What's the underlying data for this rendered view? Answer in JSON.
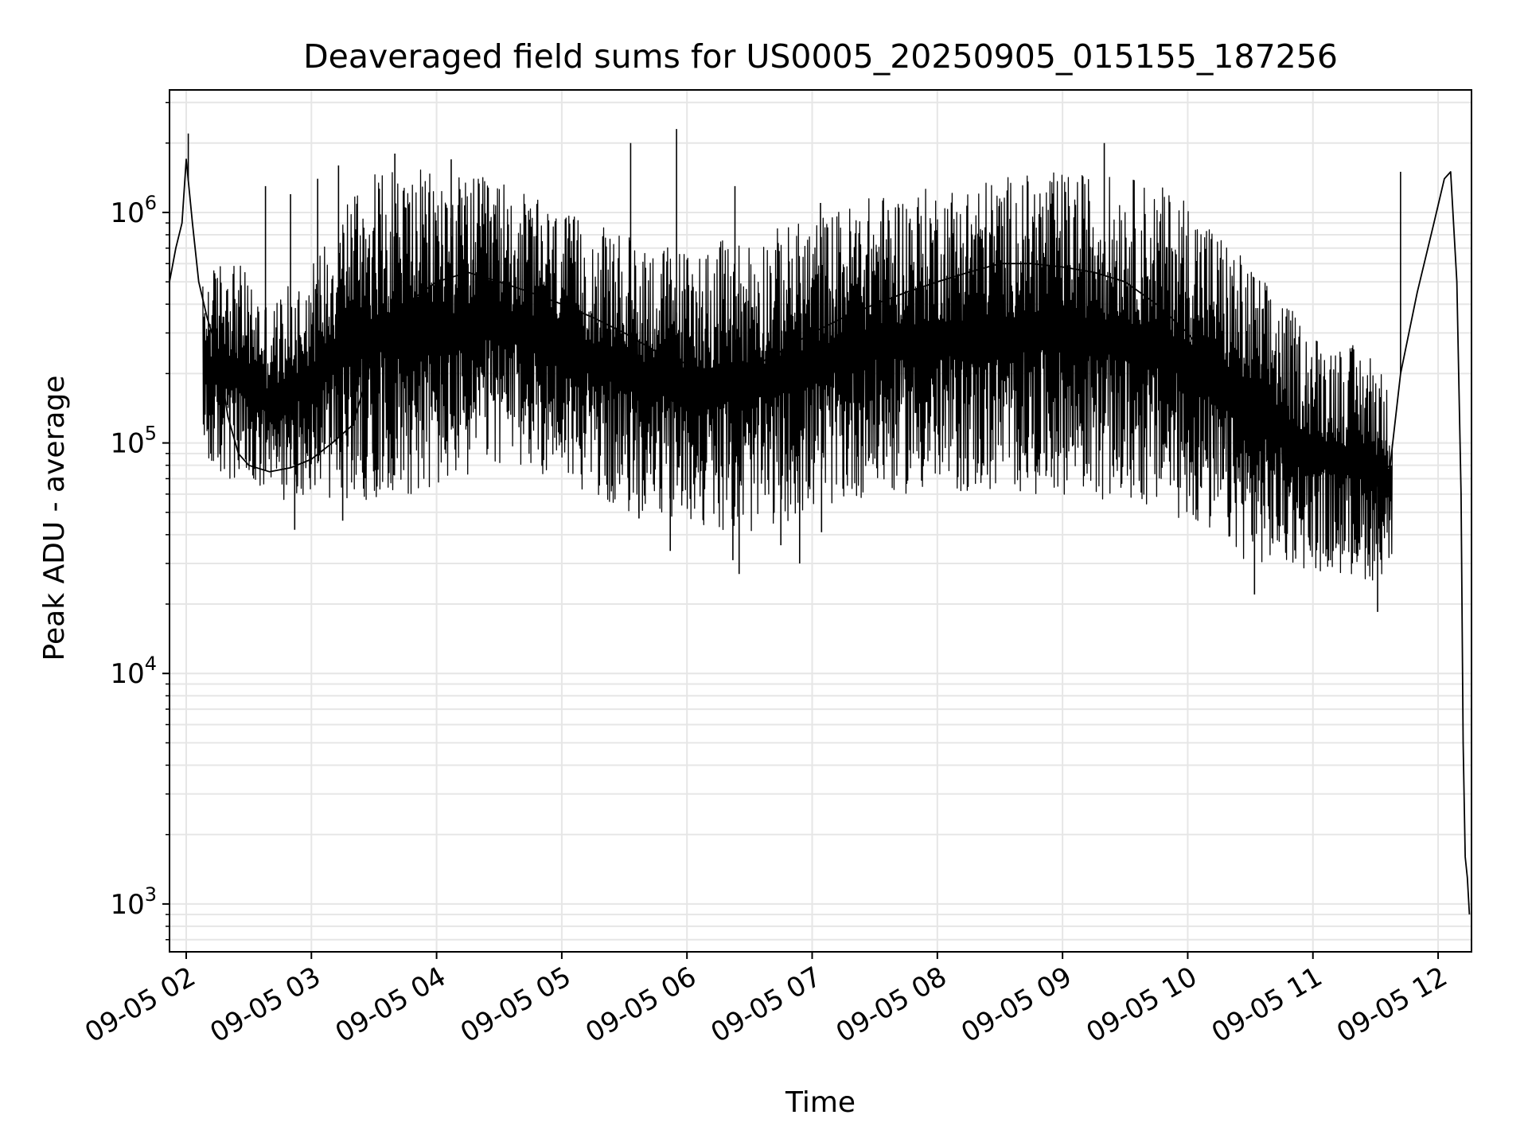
{
  "chart_data": {
    "type": "line",
    "title": "Deaveraged field sums for US0005_20250905_015155_187256",
    "xlabel": "Time",
    "ylabel": "Peak ADU - average",
    "y_scale": "log",
    "ylim": [
      620,
      3400000
    ],
    "xlim": [
      "2025-09-05T01:52:00",
      "2025-09-05T12:16:00"
    ],
    "grid": true,
    "line_color": "#000000",
    "grid_color": "#e6e6e6",
    "x_ticks": [
      {
        "value": "2025-09-05T02:00:00",
        "label": "09-05 02"
      },
      {
        "value": "2025-09-05T03:00:00",
        "label": "09-05 03"
      },
      {
        "value": "2025-09-05T04:00:00",
        "label": "09-05 04"
      },
      {
        "value": "2025-09-05T05:00:00",
        "label": "09-05 05"
      },
      {
        "value": "2025-09-05T06:00:00",
        "label": "09-05 06"
      },
      {
        "value": "2025-09-05T07:00:00",
        "label": "09-05 07"
      },
      {
        "value": "2025-09-05T08:00:00",
        "label": "09-05 08"
      },
      {
        "value": "2025-09-05T09:00:00",
        "label": "09-05 09"
      },
      {
        "value": "2025-09-05T10:00:00",
        "label": "09-05 10"
      },
      {
        "value": "2025-09-05T11:00:00",
        "label": "09-05 11"
      },
      {
        "value": "2025-09-05T12:00:00",
        "label": "09-05 12"
      }
    ],
    "y_ticks": [
      {
        "value": 1000,
        "base": "10",
        "exp": "3"
      },
      {
        "value": 10000,
        "base": "10",
        "exp": "4"
      },
      {
        "value": 100000,
        "base": "10",
        "exp": "5"
      },
      {
        "value": 1000000,
        "base": "10",
        "exp": "6"
      }
    ],
    "series": [
      {
        "points": [
          [
            "2025-09-05T01:52:00",
            500000
          ],
          [
            "2025-09-05T01:55:00",
            700000
          ],
          [
            "2025-09-05T01:58:00",
            900000
          ],
          [
            "2025-09-05T02:00:00",
            1700000
          ],
          [
            "2025-09-05T02:03:00",
            900000
          ],
          [
            "2025-09-05T02:06:00",
            500000
          ],
          [
            "2025-09-05T02:10:00",
            350000
          ],
          [
            "2025-09-05T02:15:00",
            250000
          ],
          [
            "2025-09-05T02:20:00",
            130000
          ],
          [
            "2025-09-05T02:25:00",
            90000
          ],
          [
            "2025-09-05T02:30:00",
            80000
          ],
          [
            "2025-09-05T02:40:00",
            75000
          ],
          [
            "2025-09-05T02:50:00",
            78000
          ],
          [
            "2025-09-05T03:00:00",
            85000
          ],
          [
            "2025-09-05T03:10:00",
            100000
          ],
          [
            "2025-09-05T03:20:00",
            120000
          ],
          [
            "2025-09-05T03:30:00",
            250000
          ],
          [
            "2025-09-05T03:45:00",
            400000
          ],
          [
            "2025-09-05T04:00:00",
            500000
          ],
          [
            "2025-09-05T04:15:00",
            550000
          ],
          [
            "2025-09-05T04:30:00",
            500000
          ],
          [
            "2025-09-05T04:45:00",
            450000
          ],
          [
            "2025-09-05T05:00:00",
            400000
          ],
          [
            "2025-09-05T05:15:00",
            350000
          ],
          [
            "2025-09-05T05:30:00",
            300000
          ],
          [
            "2025-09-05T05:45:00",
            250000
          ],
          [
            "2025-09-05T06:00:00",
            220000
          ],
          [
            "2025-09-05T06:15:00",
            200000
          ],
          [
            "2025-09-05T06:30:00",
            210000
          ],
          [
            "2025-09-05T06:45:00",
            250000
          ],
          [
            "2025-09-05T07:00:00",
            300000
          ],
          [
            "2025-09-05T07:15:00",
            350000
          ],
          [
            "2025-09-05T07:30:00",
            400000
          ],
          [
            "2025-09-05T07:45:00",
            450000
          ],
          [
            "2025-09-05T08:00:00",
            500000
          ],
          [
            "2025-09-05T08:15:00",
            550000
          ],
          [
            "2025-09-05T08:30:00",
            600000
          ],
          [
            "2025-09-05T08:45:00",
            600000
          ],
          [
            "2025-09-05T09:00:00",
            580000
          ],
          [
            "2025-09-05T09:15:00",
            550000
          ],
          [
            "2025-09-05T09:30:00",
            500000
          ],
          [
            "2025-09-05T09:45:00",
            400000
          ],
          [
            "2025-09-05T10:00:00",
            300000
          ],
          [
            "2025-09-05T10:15:00",
            200000
          ],
          [
            "2025-09-05T10:30:00",
            130000
          ],
          [
            "2025-09-05T10:45:00",
            100000
          ],
          [
            "2025-09-05T11:00:00",
            90000
          ],
          [
            "2025-09-05T11:10:00",
            85000
          ],
          [
            "2025-09-05T11:20:00",
            80000
          ],
          [
            "2025-09-05T11:30:00",
            70000
          ],
          [
            "2025-09-05T11:37:00",
            80000
          ],
          [
            "2025-09-05T11:42:00",
            200000
          ],
          [
            "2025-09-05T11:50:00",
            450000
          ],
          [
            "2025-09-05T11:58:00",
            900000
          ],
          [
            "2025-09-05T12:03:00",
            1400000
          ],
          [
            "2025-09-05T12:06:00",
            1500000
          ],
          [
            "2025-09-05T12:09:00",
            500000
          ],
          [
            "2025-09-05T12:11:00",
            60000
          ],
          [
            "2025-09-05T12:12:00",
            5000
          ],
          [
            "2025-09-05T12:13:00",
            1600
          ],
          [
            "2025-09-05T12:14:00",
            1300
          ],
          [
            "2025-09-05T12:15:00",
            900
          ]
        ],
        "band": [
          [
            "2025-09-05T02:08:00",
            80000,
            500000
          ],
          [
            "2025-09-05T02:20:00",
            65000,
            700000
          ],
          [
            "2025-09-05T02:40:00",
            55000,
            400000
          ],
          [
            "2025-09-05T03:00:00",
            60000,
            600000
          ],
          [
            "2025-09-05T03:20:00",
            55000,
            1400000
          ],
          [
            "2025-09-05T03:40:00",
            60000,
            1600000
          ],
          [
            "2025-09-05T04:00:00",
            60000,
            1500000
          ],
          [
            "2025-09-05T04:30:00",
            80000,
            1400000
          ],
          [
            "2025-09-05T05:00:00",
            70000,
            1000000
          ],
          [
            "2025-09-05T05:30:00",
            50000,
            800000
          ],
          [
            "2025-09-05T06:00:00",
            45000,
            700000
          ],
          [
            "2025-09-05T06:30:00",
            40000,
            800000
          ],
          [
            "2025-09-05T07:00:00",
            50000,
            950000
          ],
          [
            "2025-09-05T07:30:00",
            60000,
            1200000
          ],
          [
            "2025-09-05T08:00:00",
            60000,
            1300000
          ],
          [
            "2025-09-05T08:30:00",
            60000,
            1450000
          ],
          [
            "2025-09-05T09:00:00",
            60000,
            1500000
          ],
          [
            "2025-09-05T09:30:00",
            55000,
            1450000
          ],
          [
            "2025-09-05T10:00:00",
            45000,
            1200000
          ],
          [
            "2025-09-05T10:30:00",
            30000,
            600000
          ],
          [
            "2025-09-05T11:00:00",
            28000,
            300000
          ],
          [
            "2025-09-05T11:30:00",
            25000,
            250000
          ],
          [
            "2025-09-05T11:38:00",
            30000,
            150000
          ]
        ],
        "spikes": [
          [
            "2025-09-05T02:01:00",
            2200000
          ],
          [
            "2025-09-05T02:38:00",
            1300000
          ],
          [
            "2025-09-05T02:50:00",
            1200000
          ],
          [
            "2025-09-05T02:52:00",
            42000
          ],
          [
            "2025-09-05T03:03:00",
            1400000
          ],
          [
            "2025-09-05T03:13:00",
            1600000
          ],
          [
            "2025-09-05T03:15:00",
            46000
          ],
          [
            "2025-09-05T03:40:00",
            1800000
          ],
          [
            "2025-09-05T04:07:00",
            1700000
          ],
          [
            "2025-09-05T05:33:00",
            2000000
          ],
          [
            "2025-09-05T05:37:00",
            47000
          ],
          [
            "2025-09-05T05:52:00",
            34000
          ],
          [
            "2025-09-05T05:55:00",
            2300000
          ],
          [
            "2025-09-05T06:22:00",
            31000
          ],
          [
            "2025-09-05T06:23:00",
            1300000
          ],
          [
            "2025-09-05T06:25:00",
            27000
          ],
          [
            "2025-09-05T06:45:00",
            36000
          ],
          [
            "2025-09-05T06:54:00",
            30000
          ],
          [
            "2025-09-05T07:04:00",
            1100000
          ],
          [
            "2025-09-05T07:04:30",
            41000
          ],
          [
            "2025-09-05T09:20:00",
            2000000
          ],
          [
            "2025-09-05T10:32:00",
            22000
          ],
          [
            "2025-09-05T11:31:00",
            18500
          ],
          [
            "2025-09-05T11:42:00",
            1500000
          ]
        ]
      }
    ]
  }
}
